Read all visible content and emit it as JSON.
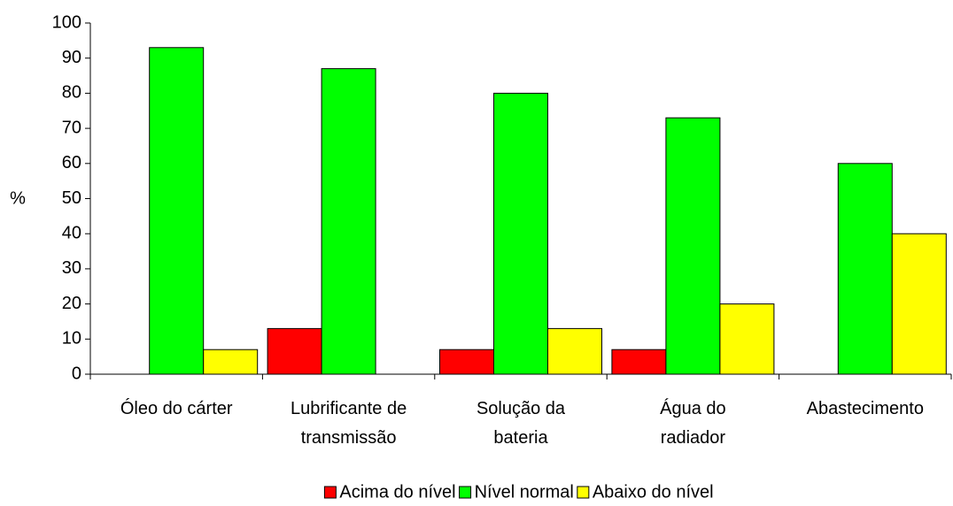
{
  "chart_data": {
    "type": "bar",
    "y_label": "%",
    "categories": [
      "Óleo do cárter",
      "Lubrificante de transmissão",
      "Solução da bateria",
      "Água do radiador",
      "Abastecimento"
    ],
    "series": [
      {
        "name": "Acima do nível",
        "color": "#ff0000",
        "values": [
          0,
          13,
          7,
          7,
          0
        ]
      },
      {
        "name": "Nível normal",
        "color": "#00ff00",
        "values": [
          93,
          87,
          80,
          73,
          60
        ]
      },
      {
        "name": "Abaixo do nível",
        "color": "#ffff00",
        "values": [
          7,
          0,
          13,
          20,
          40
        ]
      }
    ],
    "ylim": [
      0,
      100
    ],
    "yticks": [
      0,
      10,
      20,
      30,
      40,
      50,
      60,
      70,
      80,
      90,
      100
    ],
    "grid": false,
    "legend": "bottom"
  }
}
